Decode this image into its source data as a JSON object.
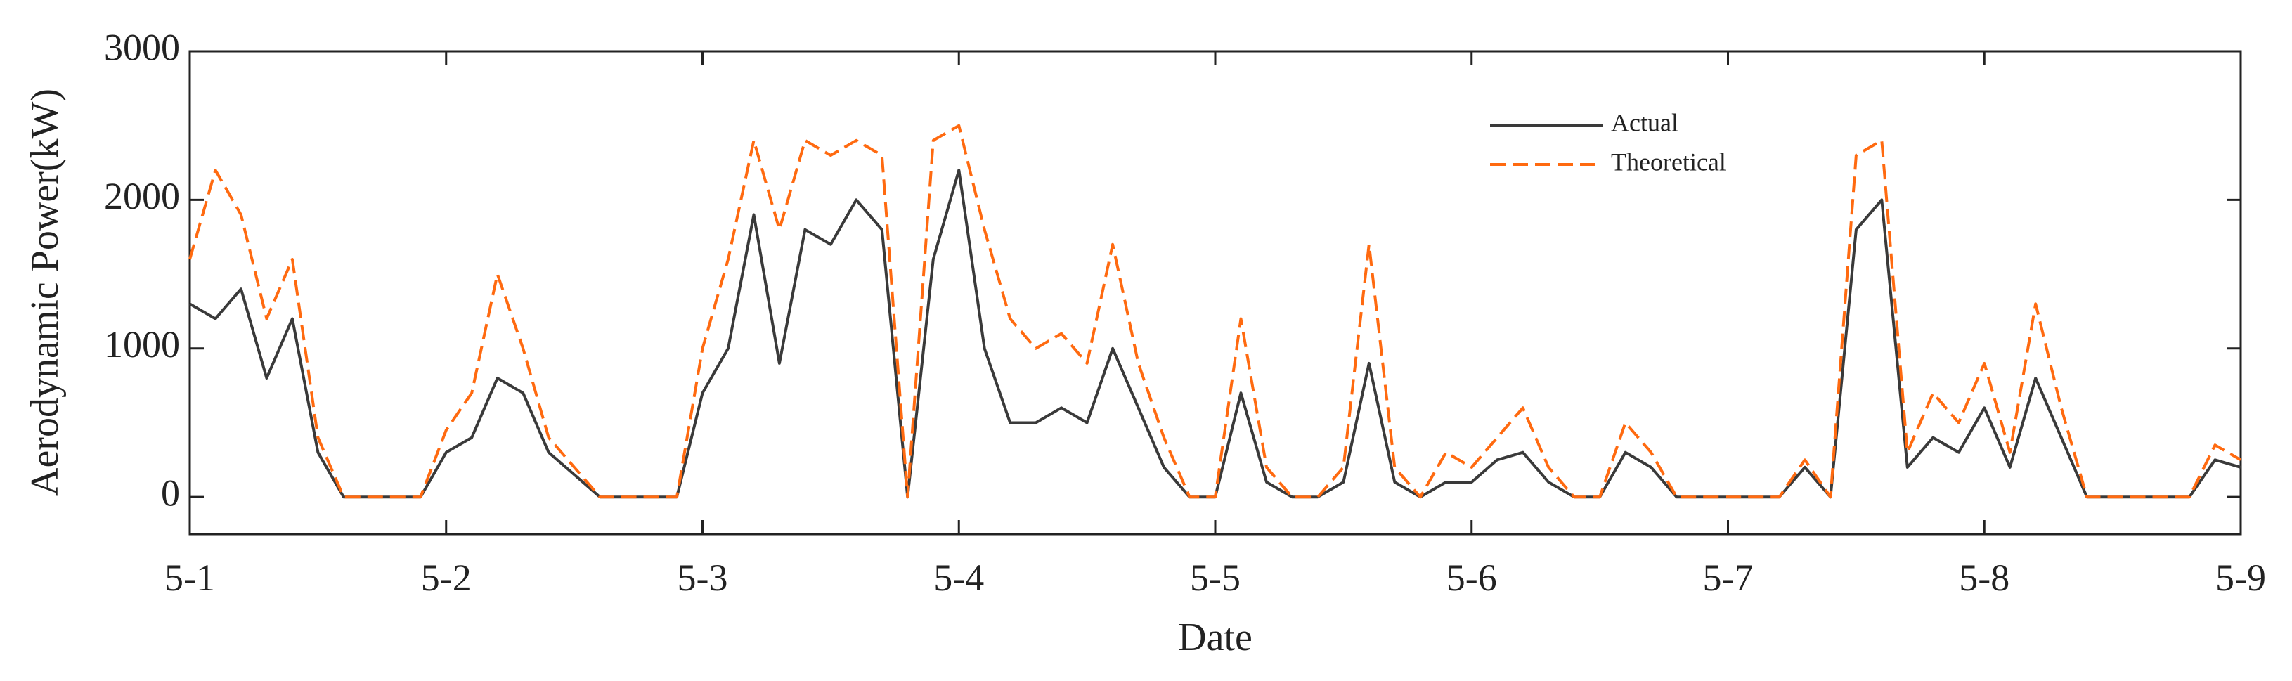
{
  "chart_data": {
    "type": "line",
    "xlabel": "Date",
    "ylabel": "Aerodynamic Power(kW)",
    "x": [
      0,
      0.1,
      0.2,
      0.3,
      0.4,
      0.5,
      0.6,
      0.7,
      0.8,
      0.9,
      1,
      1.1,
      1.2,
      1.3,
      1.4,
      1.5,
      1.6,
      1.7,
      1.8,
      1.9,
      2,
      2.1,
      2.2,
      2.3,
      2.4,
      2.5,
      2.6,
      2.7,
      2.8,
      2.9,
      3,
      3.1,
      3.2,
      3.3,
      3.4,
      3.5,
      3.6,
      3.7,
      3.8,
      3.9,
      4,
      4.1,
      4.2,
      4.3,
      4.4,
      4.5,
      4.6,
      4.7,
      4.8,
      4.9,
      5,
      5.1,
      5.2,
      5.3,
      5.4,
      5.5,
      5.6,
      5.7,
      5.8,
      5.9,
      6,
      6.1,
      6.2,
      6.3,
      6.4,
      6.5,
      6.6,
      6.7,
      6.8,
      6.9,
      7,
      7.1,
      7.2,
      7.3,
      7.4,
      7.5,
      7.6,
      7.7,
      7.8,
      7.9,
      8
    ],
    "series": [
      {
        "name": "Actual",
        "color": "#3a3a3a",
        "dash": false,
        "values": [
          1300,
          1200,
          1400,
          800,
          1200,
          300,
          0,
          0,
          0,
          0,
          300,
          400,
          800,
          700,
          300,
          150,
          0,
          0,
          0,
          0,
          700,
          1000,
          1900,
          900,
          1800,
          1700,
          2000,
          1800,
          0,
          1600,
          2200,
          1000,
          500,
          500,
          600,
          500,
          1000,
          600,
          200,
          0,
          0,
          700,
          100,
          0,
          0,
          100,
          900,
          100,
          0,
          100,
          100,
          250,
          300,
          100,
          0,
          0,
          300,
          200,
          0,
          0,
          0,
          0,
          0,
          200,
          0,
          1800,
          2000,
          200,
          400,
          300,
          600,
          200,
          800,
          400,
          0,
          0,
          0,
          0,
          0,
          250,
          200
        ]
      },
      {
        "name": "Theoretical",
        "color": "#ff6a10",
        "dash": true,
        "values": [
          1600,
          2200,
          1900,
          1200,
          1600,
          400,
          0,
          0,
          0,
          0,
          450,
          700,
          1500,
          1000,
          400,
          200,
          0,
          0,
          0,
          0,
          1000,
          1600,
          2400,
          1800,
          2400,
          2300,
          2400,
          2300,
          0,
          2400,
          2500,
          1800,
          1200,
          1000,
          1100,
          900,
          1700,
          900,
          400,
          0,
          0,
          1200,
          200,
          0,
          0,
          200,
          1700,
          200,
          0,
          300,
          200,
          400,
          600,
          200,
          0,
          0,
          500,
          300,
          0,
          0,
          0,
          0,
          0,
          250,
          0,
          2300,
          2400,
          300,
          700,
          500,
          900,
          300,
          1300,
          600,
          0,
          0,
          0,
          0,
          0,
          350,
          250
        ]
      }
    ],
    "xlim": [
      0,
      8
    ],
    "xticks": [
      {
        "value": 0,
        "label": "5-1"
      },
      {
        "value": 1,
        "label": "5-2"
      },
      {
        "value": 2,
        "label": "5-3"
      },
      {
        "value": 3,
        "label": "5-4"
      },
      {
        "value": 4,
        "label": "5-5"
      },
      {
        "value": 5,
        "label": "5-6"
      },
      {
        "value": 6,
        "label": "5-7"
      },
      {
        "value": 7,
        "label": "5-8"
      },
      {
        "value": 8,
        "label": "5-9"
      }
    ],
    "ylim": [
      -250,
      3000
    ],
    "yticks": [
      0,
      1000,
      2000,
      3000
    ],
    "legend": "upper-center"
  }
}
